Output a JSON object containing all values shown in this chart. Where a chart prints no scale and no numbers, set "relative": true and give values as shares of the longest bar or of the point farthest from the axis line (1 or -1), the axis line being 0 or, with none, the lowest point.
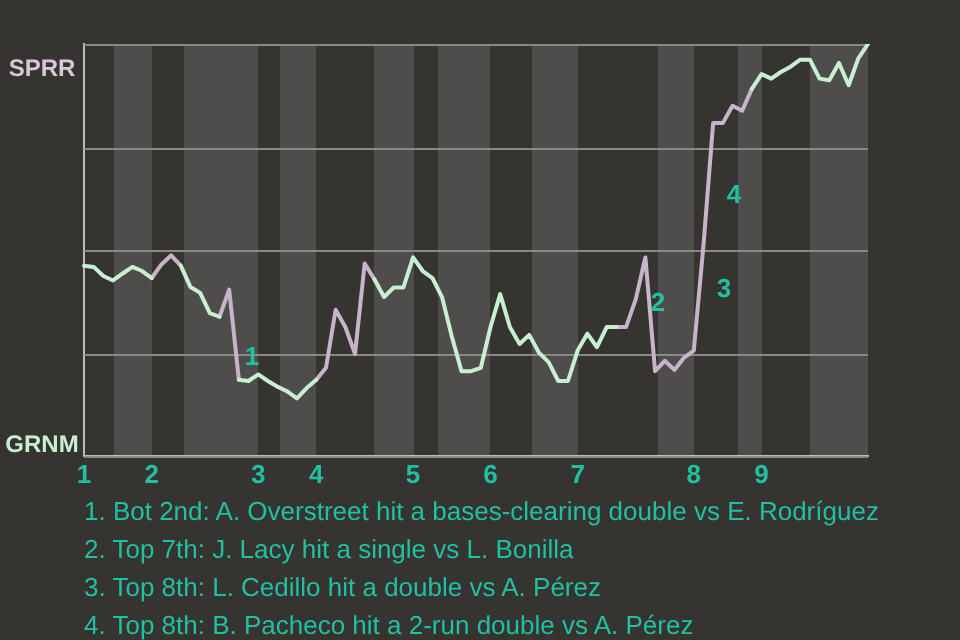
{
  "chart_data": {
    "type": "line",
    "relative": true,
    "categories": [
      "1",
      null,
      null,
      null,
      null,
      null,
      null,
      "2",
      null,
      null,
      null,
      null,
      null,
      null,
      null,
      null,
      null,
      null,
      "3",
      null,
      null,
      null,
      null,
      null,
      "4",
      null,
      null,
      null,
      null,
      null,
      null,
      null,
      null,
      null,
      "5",
      null,
      null,
      null,
      null,
      null,
      null,
      null,
      "6",
      null,
      null,
      null,
      null,
      null,
      null,
      null,
      null,
      "7",
      null,
      null,
      null,
      null,
      null,
      null,
      null,
      null,
      null,
      null,
      null,
      "8",
      null,
      null,
      null,
      null,
      null,
      null,
      "9",
      null,
      null,
      null,
      null,
      null,
      null,
      null,
      null,
      null,
      null,
      null
    ],
    "series": [
      {
        "color": "#c8f0d0",
        "values": [
          0.462,
          0.459,
          0.437,
          0.426,
          0.443,
          0.459,
          0.449,
          0.432,
          null,
          null,
          0.462,
          0.41,
          0.396,
          0.347,
          0.338,
          null,
          0.185,
          0.182,
          0.198,
          0.182,
          0.168,
          0.157,
          0.14,
          0.165,
          0.185,
          null,
          null,
          null,
          null,
          null,
          0.429,
          0.386,
          0.409,
          0.409,
          0.482,
          0.449,
          0.432,
          0.385,
          0.29,
          0.206,
          0.206,
          0.214,
          0.313,
          0.393,
          0.313,
          0.272,
          0.294,
          0.251,
          0.228,
          0.182,
          0.182,
          0.256,
          0.297,
          0.264,
          0.313,
          0.313,
          null,
          null,
          null,
          null,
          null,
          null,
          null,
          null,
          null,
          null,
          null,
          null,
          null,
          0.891,
          0.927,
          0.916,
          0.932,
          0.945,
          0.962,
          0.962,
          0.916,
          0.912,
          0.954,
          0.9,
          0.965,
          1
        ]
      },
      {
        "color": "#c8b4c8",
        "values": [
          null,
          null,
          null,
          null,
          null,
          null,
          null,
          0.432,
          0.465,
          0.487,
          0.462,
          null,
          null,
          null,
          0.338,
          0.404,
          0.185,
          null,
          null,
          null,
          null,
          null,
          null,
          null,
          0.185,
          0.214,
          0.355,
          0.313,
          0.248,
          0.467,
          0.429,
          null,
          null,
          null,
          null,
          null,
          null,
          null,
          null,
          null,
          null,
          null,
          null,
          null,
          null,
          null,
          null,
          null,
          null,
          null,
          null,
          null,
          null,
          null,
          null,
          0.313,
          0.313,
          0.38,
          0.482,
          0.206,
          0.231,
          0.209,
          0.239,
          0.256,
          0.511,
          0.808,
          0.808,
          0.85,
          0.838,
          0.891,
          null,
          null,
          null,
          null,
          null,
          null,
          null,
          null,
          null,
          null,
          null,
          null
        ]
      }
    ],
    "annotations": [
      "SPRR",
      "GRNM",
      "1",
      "2",
      "3",
      "4",
      "1. Bot 2nd: A. Overstreet hit a bases-clearing double vs E. Rodríguez",
      "2. Top 7th: J. Lacy hit a single vs L. Bonilla",
      "3. Top 8th: L. Cedillo hit a double vs A. Pérez",
      "4. Top 8th: B. Pacheco hit a 2-run double vs A. Pérez"
    ],
    "grid": "y",
    "legend": false,
    "marker": "none",
    "line_style": "solid"
  }
}
